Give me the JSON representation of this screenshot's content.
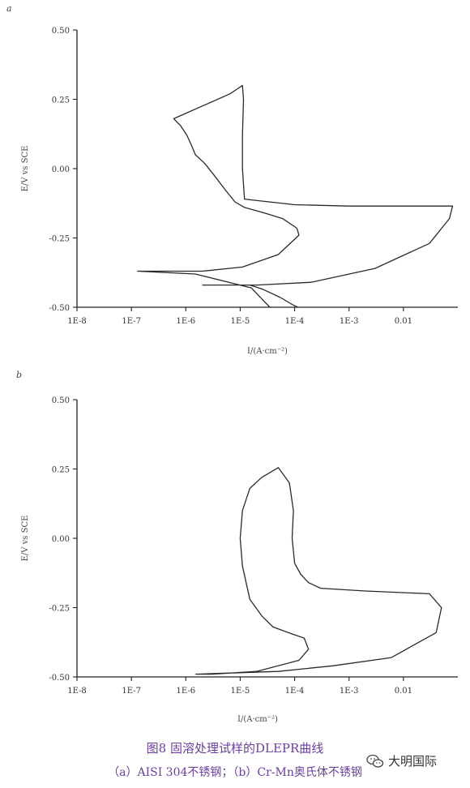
{
  "colors": {
    "curve": "#2a2a2a",
    "axis": "#222222",
    "caption": "#6a3fa0"
  },
  "chart_data": [
    {
      "type": "line",
      "panel_label": "a",
      "xscale": "log",
      "xlim": [
        1e-08,
        0.1
      ],
      "ylim": [
        -0.5,
        0.5
      ],
      "x_tick_labels": [
        "1E-8",
        "1E-7",
        "1E-6",
        "1E-5",
        "1E-4",
        "1E-3",
        "0.01"
      ],
      "y_tick_labels": [
        "0.50",
        "0.25",
        "0.00",
        "-0.25",
        "-0.50"
      ],
      "y_ticks": [
        0.5,
        0.25,
        0.0,
        -0.25,
        -0.5
      ],
      "xlabel": "I/(A·cm⁻²)",
      "ylabel": "E/V vs SCE",
      "series": [
        {
          "x": [
            3.5e-05,
            2.5e-05,
            1.6e-05,
            1.5e-06,
            1.3e-07,
            2e-06,
            1.1e-05,
            5e-05,
            0.00012,
            0.00011,
            6e-05,
            3e-05,
            2e-05,
            1.2e-05,
            8e-06,
            5e-06,
            3.2e-06,
            2.2e-06,
            1.5e-06,
            1.3e-06,
            1.05e-06,
            8e-07,
            6e-07,
            6.5e-06,
            8.5e-06,
            1.1e-05,
            1.15e-05,
            1.1e-05,
            1.1e-05,
            1.2e-05,
            0.0001,
            0.001,
            0.008,
            0.08,
            0.07,
            0.03,
            0.003,
            0.0002,
            2e-05,
            2e-06
          ],
          "y": [
            -0.5,
            -0.47,
            -0.43,
            -0.38,
            -0.37,
            -0.37,
            -0.355,
            -0.31,
            -0.24,
            -0.215,
            -0.18,
            -0.162,
            -0.152,
            -0.14,
            -0.12,
            -0.07,
            -0.02,
            0.02,
            0.05,
            0.08,
            0.12,
            0.155,
            0.18,
            0.27,
            0.285,
            0.3,
            0.25,
            0.12,
            0.0,
            -0.11,
            -0.13,
            -0.135,
            -0.135,
            -0.135,
            -0.18,
            -0.27,
            -0.36,
            -0.41,
            -0.42,
            -0.42
          ]
        },
        {
          "x": [
            0.000115,
            9e-05,
            5.5e-05,
            2.6e-05,
            1.5e-05
          ],
          "y": [
            -0.5,
            -0.49,
            -0.465,
            -0.435,
            -0.42
          ]
        }
      ]
    },
    {
      "type": "line",
      "panel_label": "b",
      "xscale": "log",
      "xlim": [
        1e-08,
        0.1
      ],
      "ylim": [
        -0.5,
        0.5
      ],
      "x_tick_labels": [
        "1E-8",
        "1E-7",
        "1E-6",
        "1E-5",
        "1E-4",
        "1E-3",
        "0.01"
      ],
      "y_tick_labels": [
        "0.50",
        "0.25",
        "0.00",
        "-0.25",
        "-0.50"
      ],
      "y_ticks": [
        0.5,
        0.25,
        0.0,
        -0.25,
        -0.5
      ],
      "xlabel": "I/(A·cm⁻²)",
      "ylabel": "E/V vs SCE",
      "series": [
        {
          "x": [
            1.6e-06,
            3e-06,
            2e-05,
            0.00012,
            0.00018,
            0.00015,
            9e-05,
            4e-05,
            2.5e-05,
            1.5e-05,
            1.1e-05,
            1e-05,
            1.1e-05,
            1.5e-05,
            2.5e-05,
            5e-05,
            8e-05,
            9.5e-05,
            9e-05,
            0.0001,
            0.00013,
            0.00018,
            0.0003,
            0.002,
            0.03,
            0.05,
            0.04,
            0.006,
            0.0005,
            5e-05,
            1.5e-06
          ],
          "y": [
            -0.49,
            -0.49,
            -0.48,
            -0.44,
            -0.4,
            -0.36,
            -0.345,
            -0.32,
            -0.28,
            -0.22,
            -0.1,
            0.0,
            0.1,
            0.18,
            0.22,
            0.255,
            0.2,
            0.1,
            0.0,
            -0.09,
            -0.13,
            -0.16,
            -0.18,
            -0.19,
            -0.2,
            -0.25,
            -0.34,
            -0.43,
            -0.46,
            -0.48,
            -0.49
          ]
        }
      ]
    }
  ],
  "caption": {
    "title": "图8  固溶处理试样的DLEPR曲线",
    "subtitle": "（a）AISI 304不锈钢；（b）Cr-Mn奥氏体不锈钢"
  },
  "watermark": {
    "text": "大明国际",
    "icon": "wechat-icon"
  }
}
